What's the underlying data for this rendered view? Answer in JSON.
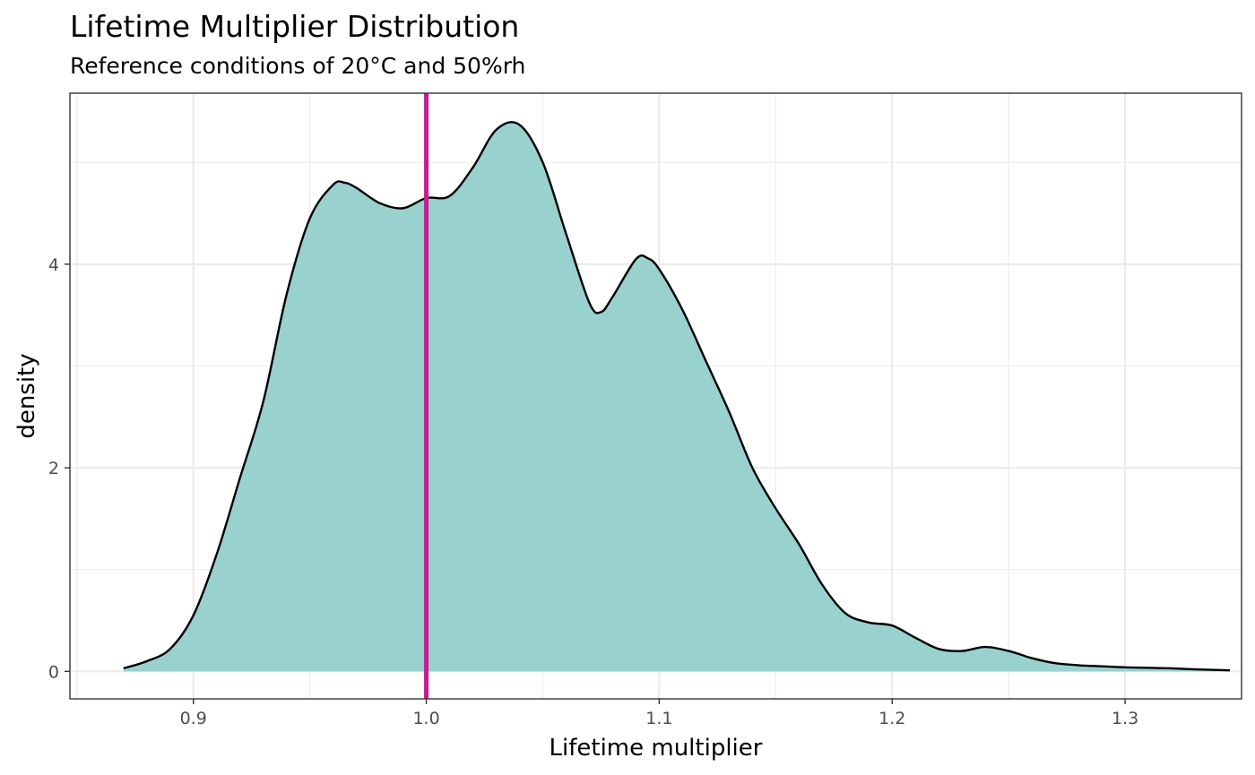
{
  "chart_data": {
    "type": "area",
    "title": "Lifetime Multiplier Distribution",
    "subtitle": "Reference conditions of 20°C and 50%rh",
    "xlabel": "Lifetime multiplier",
    "ylabel": "density",
    "xlim": [
      0.847,
      1.35
    ],
    "ylim": [
      -0.27,
      5.68
    ],
    "x_ticks": [
      0.9,
      1.0,
      1.1,
      1.2,
      1.3
    ],
    "x_tick_labels": [
      "0.9",
      "1.0",
      "1.1",
      "1.2",
      "1.3"
    ],
    "y_ticks": [
      0,
      2,
      4
    ],
    "y_tick_labels": [
      "0",
      "2",
      "4"
    ],
    "grid": true,
    "legend": "none",
    "series": [
      {
        "values_x": [
          0.87,
          0.88,
          0.89,
          0.9,
          0.91,
          0.92,
          0.93,
          0.94,
          0.95,
          0.96,
          0.965,
          0.97,
          0.98,
          0.99,
          1.0,
          1.01,
          1.02,
          1.03,
          1.04,
          1.05,
          1.06,
          1.07,
          1.075,
          1.08,
          1.09,
          1.095,
          1.1,
          1.11,
          1.12,
          1.13,
          1.14,
          1.15,
          1.16,
          1.17,
          1.18,
          1.19,
          1.2,
          1.21,
          1.22,
          1.23,
          1.24,
          1.25,
          1.26,
          1.27,
          1.28,
          1.29,
          1.3,
          1.31,
          1.32,
          1.33,
          1.345
        ],
        "values_y": [
          0.03,
          0.1,
          0.22,
          0.55,
          1.15,
          1.9,
          2.65,
          3.7,
          4.45,
          4.78,
          4.8,
          4.75,
          4.6,
          4.55,
          4.65,
          4.67,
          4.95,
          5.32,
          5.37,
          5.0,
          4.3,
          3.62,
          3.53,
          3.68,
          4.05,
          4.06,
          3.95,
          3.55,
          3.05,
          2.55,
          2.0,
          1.6,
          1.25,
          0.85,
          0.57,
          0.48,
          0.45,
          0.33,
          0.22,
          0.2,
          0.24,
          0.2,
          0.13,
          0.08,
          0.06,
          0.05,
          0.04,
          0.035,
          0.03,
          0.02,
          0.01
        ]
      }
    ],
    "reference_line": {
      "x": 1.0
    },
    "colors": {
      "fill": "#99d1cf",
      "outline": "#000000",
      "reference_line": "#c21f8f",
      "panel_border": "#333333"
    }
  }
}
